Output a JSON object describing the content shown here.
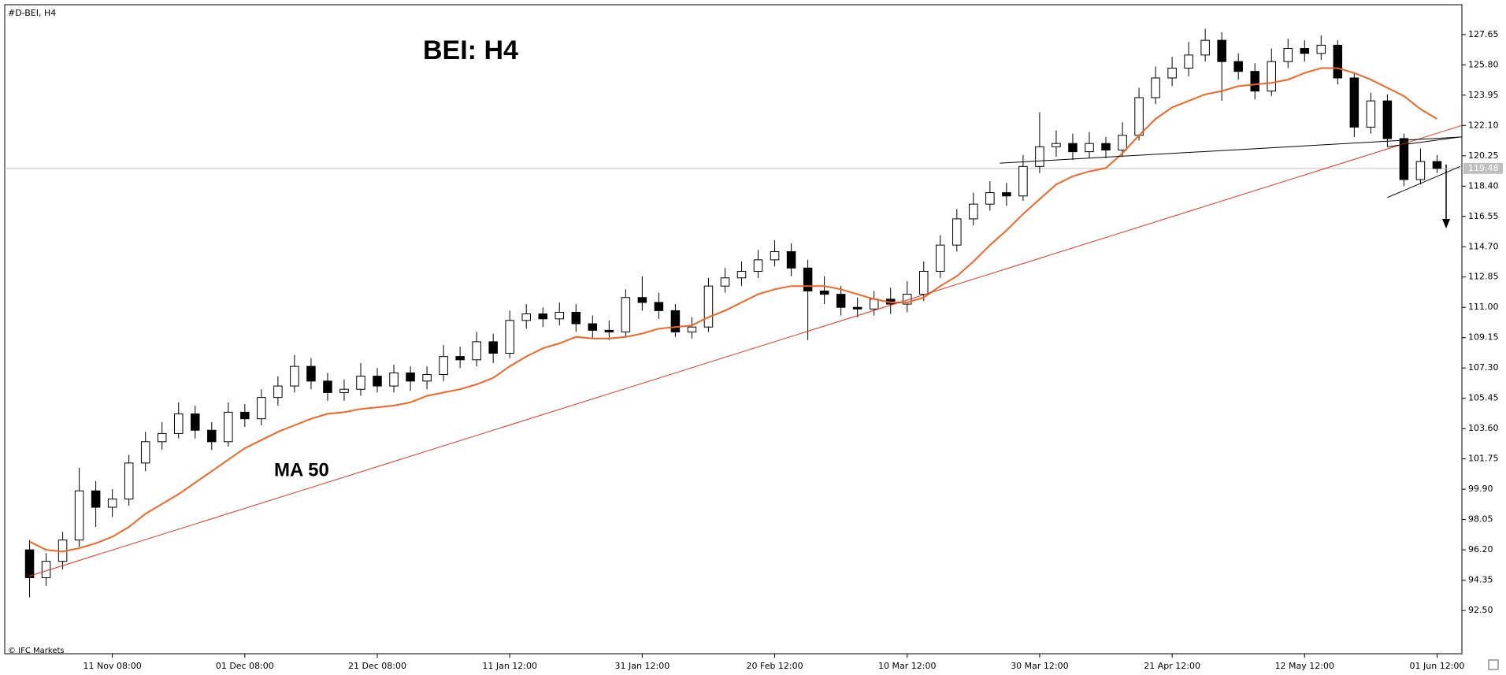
{
  "chart_data": {
    "type": "candlestick",
    "header": "#D-BEI, H4",
    "title": "BEI: H4",
    "annotation": "MA 50",
    "credit": "© IFC Markets",
    "categories": [
      null,
      null,
      null,
      null,
      null,
      "11 Nov 08:00",
      null,
      null,
      null,
      null,
      null,
      null,
      null,
      "01 Dec 08:00",
      null,
      null,
      null,
      null,
      null,
      null,
      null,
      "21 Dec 08:00",
      null,
      null,
      null,
      null,
      null,
      null,
      null,
      "11 Jan 12:00",
      null,
      null,
      null,
      null,
      null,
      null,
      null,
      "31 Jan 12:00",
      null,
      null,
      null,
      null,
      null,
      null,
      null,
      "20 Feb 12:00",
      null,
      null,
      null,
      null,
      null,
      null,
      null,
      "10 Mar 12:00",
      null,
      null,
      null,
      null,
      null,
      null,
      null,
      "30 Mar 12:00",
      null,
      null,
      null,
      null,
      null,
      null,
      null,
      "21 Apr 12:00",
      null,
      null,
      null,
      null,
      null,
      null,
      null,
      "12 May 12:00",
      null,
      null,
      null,
      null,
      null,
      null,
      null,
      "01 Jun 12:00"
    ],
    "open": [
      96.2,
      94.5,
      95.5,
      96.8,
      99.8,
      98.8,
      99.3,
      101.5,
      102.8,
      103.3,
      104.5,
      103.5,
      102.8,
      104.6,
      104.2,
      105.5,
      106.2,
      107.4,
      106.5,
      105.8,
      106.0,
      106.8,
      106.2,
      107.0,
      106.5,
      106.9,
      108.0,
      107.8,
      108.9,
      108.2,
      110.2,
      110.6,
      110.3,
      110.7,
      110.0,
      109.6,
      109.5,
      111.6,
      111.3,
      110.8,
      109.5,
      109.8,
      112.3,
      112.8,
      113.2,
      113.9,
      114.4,
      113.4,
      112.0,
      111.8,
      111.0,
      110.9,
      111.5,
      111.2,
      111.8,
      113.2,
      114.8,
      116.4,
      117.3,
      118.0,
      117.8,
      119.6,
      120.8,
      121.0,
      120.5,
      121.0,
      120.6,
      121.5,
      123.8,
      125.0,
      125.6,
      126.4,
      127.3,
      126.0,
      125.4,
      124.2,
      126.0,
      126.8,
      126.5,
      127.0,
      125.0,
      122.0,
      123.6,
      121.3,
      118.8,
      119.9
    ],
    "high": [
      96.8,
      96.0,
      97.3,
      101.2,
      100.4,
      99.9,
      102.0,
      103.4,
      104.0,
      105.2,
      105.0,
      104.0,
      105.2,
      105.1,
      106.0,
      106.8,
      108.1,
      107.9,
      107.0,
      106.6,
      107.6,
      107.3,
      107.5,
      107.4,
      107.4,
      108.7,
      108.6,
      109.5,
      109.4,
      110.8,
      111.2,
      111.0,
      111.3,
      111.2,
      110.5,
      110.2,
      112.1,
      112.9,
      111.9,
      111.2,
      110.4,
      112.8,
      113.4,
      113.8,
      114.5,
      115.1,
      114.9,
      113.9,
      112.9,
      112.3,
      111.6,
      112.0,
      112.2,
      112.6,
      113.8,
      115.4,
      117.0,
      118.0,
      118.7,
      118.6,
      120.3,
      122.9,
      121.8,
      121.6,
      121.7,
      121.4,
      122.3,
      124.4,
      125.7,
      126.3,
      127.2,
      128.0,
      127.8,
      126.5,
      125.9,
      126.8,
      127.4,
      127.3,
      127.6,
      127.3,
      125.3,
      124.1,
      124.0,
      121.6,
      120.7,
      120.3
    ],
    "low": [
      93.3,
      94.0,
      95.0,
      96.4,
      97.6,
      98.2,
      98.9,
      101.0,
      102.3,
      103.0,
      103.0,
      102.3,
      102.5,
      103.7,
      103.8,
      105.0,
      105.8,
      106.0,
      105.3,
      105.3,
      105.6,
      105.8,
      105.8,
      105.9,
      106.0,
      106.5,
      107.3,
      107.4,
      107.6,
      107.9,
      109.7,
      109.8,
      109.9,
      109.5,
      109.1,
      109.0,
      109.2,
      110.8,
      110.3,
      109.2,
      109.1,
      109.5,
      111.9,
      112.3,
      112.8,
      113.5,
      112.9,
      109.0,
      111.2,
      110.5,
      110.4,
      110.5,
      110.6,
      110.7,
      111.4,
      112.8,
      114.4,
      116.0,
      116.9,
      117.2,
      117.5,
      119.2,
      120.2,
      120.0,
      120.1,
      120.1,
      120.2,
      121.2,
      123.4,
      124.5,
      125.1,
      126.0,
      123.6,
      124.9,
      123.7,
      123.9,
      125.6,
      126.0,
      126.1,
      124.6,
      121.4,
      121.6,
      120.8,
      118.4,
      118.5,
      119.2
    ],
    "close": [
      94.5,
      95.5,
      96.8,
      99.8,
      98.8,
      99.3,
      101.5,
      102.8,
      103.3,
      104.5,
      103.5,
      102.8,
      104.6,
      104.2,
      105.5,
      106.2,
      107.4,
      106.5,
      105.8,
      106.0,
      106.8,
      106.2,
      107.0,
      106.5,
      106.9,
      108.0,
      107.8,
      108.9,
      108.2,
      110.2,
      110.6,
      110.3,
      110.7,
      110.0,
      109.6,
      109.5,
      111.6,
      111.3,
      110.8,
      109.5,
      109.8,
      112.3,
      112.8,
      113.2,
      113.9,
      114.4,
      113.4,
      112.0,
      111.8,
      111.0,
      110.9,
      111.5,
      111.2,
      111.8,
      113.2,
      114.8,
      116.4,
      117.3,
      118.0,
      117.8,
      119.6,
      120.8,
      121.0,
      120.5,
      121.0,
      120.6,
      121.5,
      123.8,
      125.0,
      125.6,
      126.4,
      127.3,
      126.0,
      125.4,
      124.2,
      126.0,
      126.8,
      126.5,
      127.0,
      125.0,
      122.0,
      123.6,
      121.3,
      118.8,
      119.9,
      119.48
    ],
    "ma": {
      "color": "#f26522",
      "values": [
        96.7,
        96.2,
        96.1,
        96.3,
        96.6,
        97.0,
        97.6,
        98.4,
        99.0,
        99.6,
        100.3,
        101.0,
        101.7,
        102.4,
        102.9,
        103.4,
        103.8,
        104.2,
        104.5,
        104.6,
        104.8,
        104.9,
        105.0,
        105.2,
        105.6,
        105.8,
        106.0,
        106.3,
        106.7,
        107.4,
        108.0,
        108.5,
        108.8,
        109.2,
        109.1,
        109.1,
        109.2,
        109.4,
        109.7,
        109.8,
        109.9,
        110.4,
        110.8,
        111.3,
        111.8,
        112.1,
        112.3,
        112.3,
        112.3,
        112.1,
        111.8,
        111.5,
        111.3,
        111.3,
        111.6,
        112.3,
        112.9,
        113.8,
        114.8,
        115.7,
        116.7,
        117.6,
        118.5,
        119.0,
        119.3,
        119.5,
        120.4,
        121.5,
        122.5,
        123.2,
        123.6,
        124.0,
        124.2,
        124.5,
        124.6,
        124.7,
        124.9,
        125.3,
        125.6,
        125.6,
        125.3,
        124.9,
        124.4,
        123.9,
        123.1,
        122.5
      ]
    },
    "lines": [
      {
        "color": "#d9381e",
        "x": [
          0,
          86.5
        ],
        "values": [
          94.6,
          122.1
        ]
      },
      {
        "color": "#000000",
        "x": [
          58.6,
          86.5
        ],
        "values": [
          119.8,
          121.4
        ]
      },
      {
        "color": "#000000",
        "x": [
          82,
          86.4
        ],
        "values": [
          120.8,
          121.4
        ]
      },
      {
        "color": "#000000",
        "x": [
          82,
          86.4
        ],
        "values": [
          117.7,
          119.6
        ]
      }
    ],
    "up_color": "#ffffff",
    "down_color": "#000000",
    "ylim": [
      89.86,
      129.47
    ],
    "yticks": [
      {
        "value": 92.5,
        "label": "92.50"
      },
      94.35,
      {
        "value": 96.2,
        "label": "96.20"
      },
      98.05,
      {
        "value": 99.9,
        "label": "99.90"
      },
      101.75,
      {
        "value": 103.6,
        "label": "103.60"
      },
      105.45,
      {
        "value": 107.3,
        "label": "107.30"
      },
      109.15,
      {
        "value": 111.0,
        "label": "111.00"
      },
      112.85,
      {
        "value": 114.7,
        "label": "114.70"
      },
      116.55,
      {
        "value": 118.4,
        "label": "118.40"
      },
      120.25,
      {
        "value": 122.1,
        "label": "122.10"
      },
      123.95,
      {
        "value": 125.8,
        "label": "125.80"
      },
      127.65
    ],
    "grid": false
  }
}
